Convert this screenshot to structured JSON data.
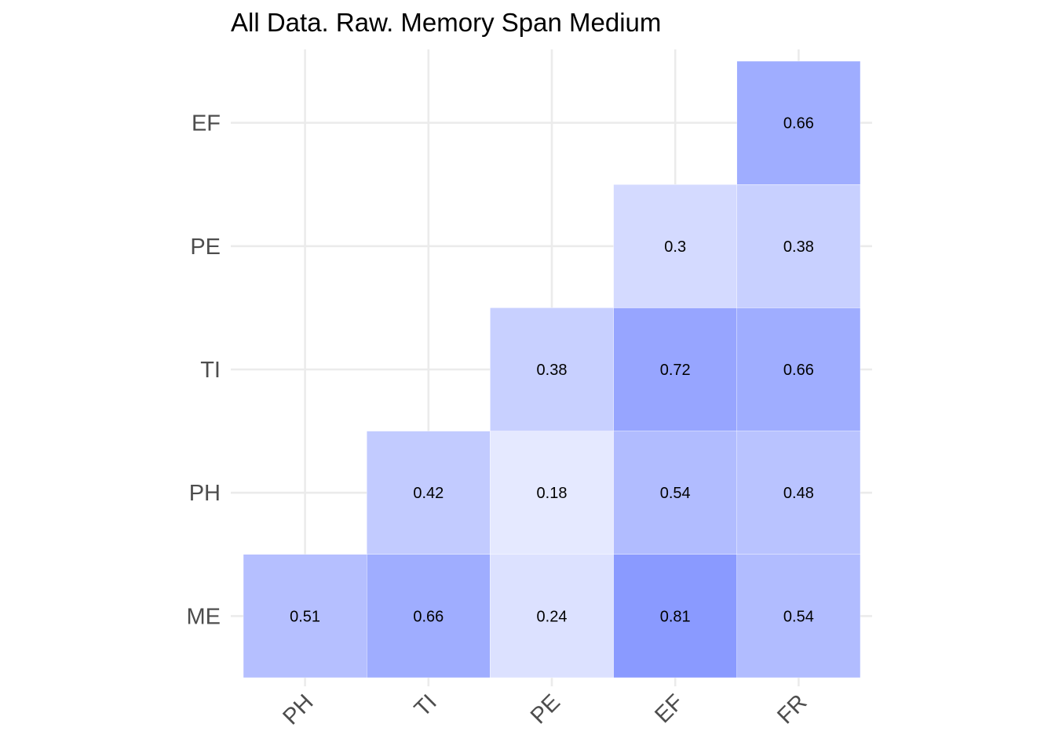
{
  "chart_data": {
    "type": "heatmap",
    "title": "All Data. Raw. Memory Span Medium",
    "xlabel": "",
    "ylabel": "",
    "x_categories": [
      "PH",
      "TI",
      "PE",
      "EF",
      "FR"
    ],
    "y_categories": [
      "ME",
      "PH",
      "TI",
      "PE",
      "EF"
    ],
    "grid": true,
    "legend": "none",
    "color_low": "#ffffff",
    "color_high": "#6e82ff",
    "cells": [
      {
        "x": "PH",
        "y": "ME",
        "value": 0.51,
        "label": "0.51"
      },
      {
        "x": "TI",
        "y": "ME",
        "value": 0.66,
        "label": "0.66"
      },
      {
        "x": "PE",
        "y": "ME",
        "value": 0.24,
        "label": "0.24"
      },
      {
        "x": "EF",
        "y": "ME",
        "value": 0.81,
        "label": "0.81"
      },
      {
        "x": "FR",
        "y": "ME",
        "value": 0.54,
        "label": "0.54"
      },
      {
        "x": "TI",
        "y": "PH",
        "value": 0.42,
        "label": "0.42"
      },
      {
        "x": "PE",
        "y": "PH",
        "value": 0.18,
        "label": "0.18"
      },
      {
        "x": "EF",
        "y": "PH",
        "value": 0.54,
        "label": "0.54"
      },
      {
        "x": "FR",
        "y": "PH",
        "value": 0.48,
        "label": "0.48"
      },
      {
        "x": "PE",
        "y": "TI",
        "value": 0.38,
        "label": "0.38"
      },
      {
        "x": "EF",
        "y": "TI",
        "value": 0.72,
        "label": "0.72"
      },
      {
        "x": "FR",
        "y": "TI",
        "value": 0.66,
        "label": "0.66"
      },
      {
        "x": "EF",
        "y": "PE",
        "value": 0.3,
        "label": "0.3"
      },
      {
        "x": "FR",
        "y": "PE",
        "value": 0.38,
        "label": "0.38"
      },
      {
        "x": "FR",
        "y": "EF",
        "value": 0.66,
        "label": "0.66"
      }
    ]
  }
}
